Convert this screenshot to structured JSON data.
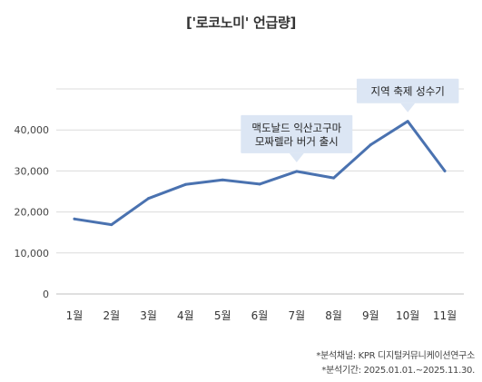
{
  "chart_data": {
    "type": "line",
    "title": "['로코노미' 언급량]",
    "categories": [
      "1월",
      "2월",
      "3월",
      "4월",
      "5월",
      "6월",
      "7월",
      "8월",
      "9월",
      "10월",
      "11월"
    ],
    "series": [
      {
        "values": [
          18300,
          16900,
          23300,
          26700,
          27800,
          26800,
          29900,
          28300,
          36400,
          42100,
          30000
        ]
      }
    ],
    "ylim": [
      0,
      50000
    ],
    "yticks": [
      "0",
      "10,000",
      "20,000",
      "30,000",
      "40,000"
    ],
    "ytick_values": [
      0,
      10000,
      20000,
      30000,
      40000
    ],
    "grid": true,
    "line_color": "#4a72b0",
    "callout_color": "#dce6f4",
    "annotations": [
      {
        "category_index": 6,
        "lines": [
          "맥도날드 익산고구마",
          "모짜렐라 버거 출시"
        ]
      },
      {
        "category_index": 9,
        "lines": [
          "지역 축제 성수기"
        ]
      }
    ]
  },
  "notes": {
    "source": "*분석채널: KPR 디지털커뮤니케이션연구소",
    "period": "*분석기간: 2025.01.01.~2025.11.30."
  }
}
